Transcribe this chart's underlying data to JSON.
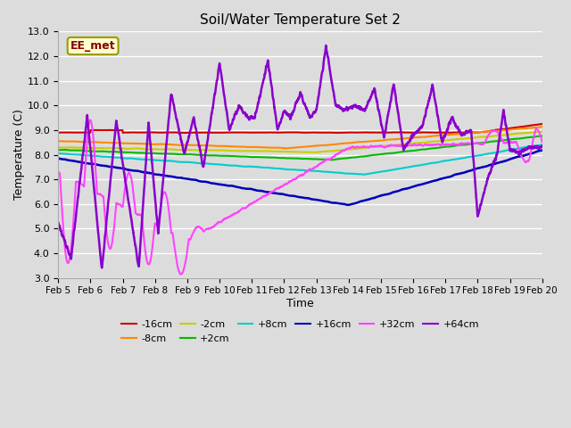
{
  "title": "Soil/Water Temperature Set 2",
  "xlabel": "Time",
  "ylabel": "Temperature (C)",
  "ylim": [
    3.0,
    13.0
  ],
  "yticks": [
    3.0,
    4.0,
    5.0,
    6.0,
    7.0,
    8.0,
    9.0,
    10.0,
    11.0,
    12.0,
    13.0
  ],
  "background_color": "#dcdcdc",
  "plot_bg_color": "#dcdcdc",
  "annotation": "EE_met",
  "series": {
    "-16cm": {
      "color": "#cc0000",
      "lw": 1.5
    },
    "-8cm": {
      "color": "#ff8800",
      "lw": 1.5
    },
    "-2cm": {
      "color": "#cccc00",
      "lw": 1.5
    },
    "+2cm": {
      "color": "#00bb00",
      "lw": 1.5
    },
    "+8cm": {
      "color": "#00cccc",
      "lw": 1.5
    },
    "+16cm": {
      "color": "#0000bb",
      "lw": 1.8
    },
    "+32cm": {
      "color": "#ff44ff",
      "lw": 1.5
    },
    "+64cm": {
      "color": "#8800cc",
      "lw": 1.8
    }
  },
  "xtick_labels": [
    "Feb 5",
    "Feb 6",
    "Feb 7",
    "Feb 8",
    "Feb 9",
    "Feb 10",
    "Feb 11",
    "Feb 12",
    "Feb 13",
    "Feb 14",
    "Feb 15",
    "Feb 16",
    "Feb 17",
    "Feb 18",
    "Feb 19",
    "Feb 20"
  ],
  "legend_order": [
    "-16cm",
    "-8cm",
    "-2cm",
    "+2cm",
    "+8cm",
    "+16cm",
    "+32cm",
    "+64cm"
  ]
}
